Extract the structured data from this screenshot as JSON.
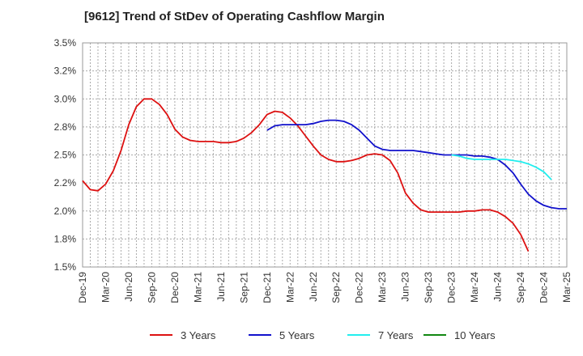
{
  "chart_data": {
    "type": "line",
    "title": "[9612]  Trend of StDev of Operating Cashflow Margin",
    "xlabel": "",
    "ylabel": "",
    "grid": true,
    "legend_placement": "bottom",
    "x_tick_labels": [
      "Dec-19",
      "Mar-20",
      "Jun-20",
      "Sep-20",
      "Dec-20",
      "Mar-21",
      "Jun-21",
      "Sep-21",
      "Dec-21",
      "Mar-22",
      "Jun-22",
      "Sep-22",
      "Dec-22",
      "Mar-23",
      "Jun-23",
      "Sep-23",
      "Dec-23",
      "Mar-24",
      "Jun-24",
      "Sep-24",
      "Dec-24",
      "Mar-25"
    ],
    "y_ticks": [
      1.5,
      1.75,
      2.0,
      2.25,
      2.5,
      2.75,
      3.0,
      3.25,
      3.5
    ],
    "y_tick_labels": [
      "1.5%",
      "1.8%",
      "2.0%",
      "2.2%",
      "2.5%",
      "2.8%",
      "3.0%",
      "3.2%",
      "3.5%"
    ],
    "ylim": [
      1.5,
      3.5
    ],
    "series": [
      {
        "name": "3 Years",
        "color": "#dd1111",
        "start_index": 0,
        "values": [
          2.27,
          2.19,
          2.18,
          2.24,
          2.36,
          2.54,
          2.77,
          2.93,
          3.0,
          3.0,
          2.95,
          2.86,
          2.73,
          2.66,
          2.63,
          2.62,
          2.62,
          2.62,
          2.61,
          2.61,
          2.62,
          2.65,
          2.7,
          2.77,
          2.86,
          2.89,
          2.88,
          2.83,
          2.76,
          2.67,
          2.58,
          2.5,
          2.46,
          2.44,
          2.44,
          2.45,
          2.47,
          2.5,
          2.51,
          2.5,
          2.45,
          2.34,
          2.16,
          2.07,
          2.01,
          1.99,
          1.99,
          1.99,
          1.99,
          1.99,
          2.0,
          2.0,
          2.01,
          2.01,
          1.99,
          1.95,
          1.89,
          1.79,
          1.64
        ]
      },
      {
        "name": "5 Years",
        "color": "#1111cc",
        "start_index": 24,
        "values": [
          2.72,
          2.76,
          2.77,
          2.77,
          2.77,
          2.77,
          2.78,
          2.8,
          2.81,
          2.81,
          2.8,
          2.77,
          2.72,
          2.65,
          2.58,
          2.55,
          2.54,
          2.54,
          2.54,
          2.54,
          2.53,
          2.52,
          2.51,
          2.5,
          2.5,
          2.5,
          2.5,
          2.49,
          2.49,
          2.48,
          2.46,
          2.41,
          2.34,
          2.24,
          2.15,
          2.09,
          2.05,
          2.03,
          2.02,
          2.02
        ]
      },
      {
        "name": "7 Years",
        "color": "#22eeee",
        "start_index": 48,
        "values": [
          2.5,
          2.49,
          2.47,
          2.46,
          2.46,
          2.46,
          2.46,
          2.46,
          2.45,
          2.44,
          2.42,
          2.39,
          2.35,
          2.28
        ]
      },
      {
        "name": "10 Years",
        "color": "#118811",
        "start_index": 0,
        "values": []
      }
    ]
  }
}
